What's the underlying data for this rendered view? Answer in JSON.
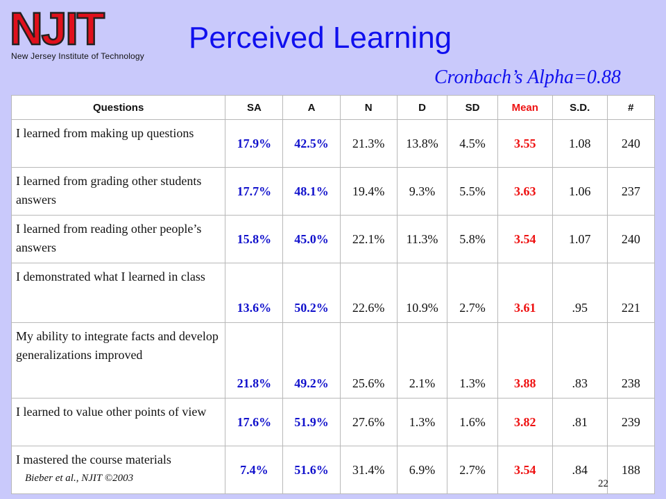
{
  "logo": {
    "text": "NJIT",
    "subtitle": "New Jersey Institute of Technology"
  },
  "title": "Perceived Learning",
  "subtitle": "Cronbach’s Alpha=0.88",
  "colors": {
    "background": "#c9c9fb",
    "title": "#1010ee",
    "logo_red": "#e0101c",
    "emphasis_blue": "#1111cc",
    "emphasis_red": "#ee1111"
  },
  "table": {
    "headers": [
      "Questions",
      "SA",
      "A",
      "N",
      "D",
      "SD",
      "Mean",
      "S.D.",
      "#"
    ],
    "rows": [
      [
        "I learned from making up questions",
        "17.9%",
        "42.5%",
        "21.3%",
        "13.8%",
        "4.5%",
        "3.55",
        "1.08",
        "240"
      ],
      [
        "I learned from grading other students answers",
        "17.7%",
        "48.1%",
        "19.4%",
        "9.3%",
        "5.5%",
        "3.63",
        "1.06",
        "237"
      ],
      [
        "I learned from reading other people’s answers",
        "15.8%",
        "45.0%",
        "22.1%",
        "11.3%",
        "5.8%",
        "3.54",
        "1.07",
        "240"
      ],
      [
        "I demonstrated what I learned in class",
        "13.6%",
        "50.2%",
        "22.6%",
        "10.9%",
        "2.7%",
        "3.61",
        ".95",
        "221"
      ],
      [
        "My ability to integrate facts and develop generalizations improved",
        "21.8%",
        "49.2%",
        "25.6%",
        "2.1%",
        "1.3%",
        "3.88",
        ".83",
        "238"
      ],
      [
        "I learned to value other points of view",
        "17.6%",
        "51.9%",
        "27.6%",
        "1.3%",
        "1.6%",
        "3.82",
        ".81",
        "239"
      ],
      [
        "I mastered the course materials",
        "7.4%",
        "51.6%",
        "31.4%",
        "6.9%",
        "2.7%",
        "3.54",
        ".84",
        "188"
      ]
    ]
  },
  "footer": {
    "citation": "Bieber et al., NJIT ©2003",
    "page_number": "22"
  }
}
